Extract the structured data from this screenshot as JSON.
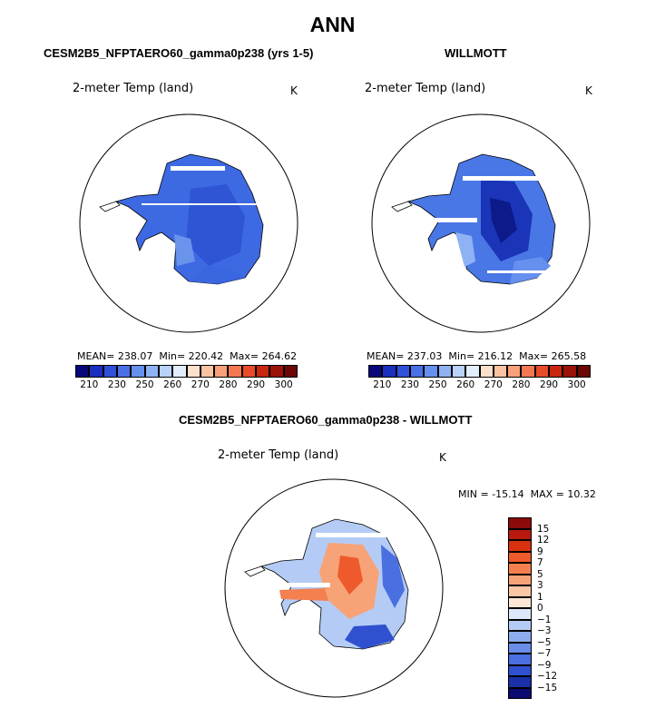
{
  "main_title": "ANN",
  "chart_data": [
    {
      "type": "heatmap",
      "map": "south-polar-stereographic",
      "title": "CESM2B5_NFPTAERO60_gamma0p238 (yrs 1-5)",
      "variable": "2-meter Temp (land)",
      "units": "K",
      "stats": {
        "mean_label": "MEAN=",
        "mean": "238.07",
        "min_label": "Min=",
        "min": "220.42",
        "max_label": "Max=",
        "max": "264.62"
      },
      "colorbar": {
        "orientation": "horizontal",
        "levels": [
          210,
          220,
          230,
          240,
          250,
          255,
          260,
          265,
          270,
          275,
          280,
          285,
          290,
          295,
          300
        ],
        "tick_labels": [
          "210",
          "230",
          "250",
          "260",
          "270",
          "280",
          "290",
          "300"
        ],
        "colors": [
          "#08087a",
          "#1a2fbf",
          "#2f50d9",
          "#4a6fe6",
          "#6690ee",
          "#8fb2f4",
          "#b8d2f8",
          "#e2eefb",
          "#fde0cc",
          "#fbc3a2",
          "#f8a07a",
          "#f27752",
          "#e84a2a",
          "#c8260f",
          "#9a1208",
          "#6b0704"
        ]
      }
    },
    {
      "type": "heatmap",
      "map": "south-polar-stereographic",
      "title": "WILLMOTT",
      "variable": "2-meter Temp (land)",
      "units": "K",
      "stats": {
        "mean_label": "MEAN=",
        "mean": "237.03",
        "min_label": "Min=",
        "min": "216.12",
        "max_label": "Max=",
        "max": "265.58"
      },
      "colorbar": {
        "orientation": "horizontal",
        "levels": [
          210,
          220,
          230,
          240,
          250,
          255,
          260,
          265,
          270,
          275,
          280,
          285,
          290,
          295,
          300
        ],
        "tick_labels": [
          "210",
          "230",
          "250",
          "260",
          "270",
          "280",
          "290",
          "300"
        ],
        "colors": [
          "#08087a",
          "#1a2fbf",
          "#2f50d9",
          "#4a6fe6",
          "#6690ee",
          "#8fb2f4",
          "#b8d2f8",
          "#e2eefb",
          "#fde0cc",
          "#fbc3a2",
          "#f8a07a",
          "#f27752",
          "#e84a2a",
          "#c8260f",
          "#9a1208",
          "#6b0704"
        ]
      }
    },
    {
      "type": "heatmap",
      "map": "south-polar-stereographic",
      "title": "CESM2B5_NFPTAERO60_gamma0p238 - WILLMOTT",
      "variable": "2-meter Temp (land)",
      "units": "K",
      "stats": {
        "min_label": "MIN =",
        "min": "-15.14",
        "max_label": "MAX =",
        "max": "10.32"
      },
      "colorbar": {
        "orientation": "vertical",
        "levels": [
          15,
          12,
          9,
          7,
          5,
          3,
          1,
          0,
          -1,
          -3,
          -5,
          -7,
          -9,
          -12,
          -15
        ],
        "tick_labels": [
          "15",
          "12",
          "9",
          "7",
          "5",
          "3",
          "1",
          "0",
          "−1",
          "−3",
          "−5",
          "−7",
          "−9",
          "−12",
          "−15"
        ],
        "colors": [
          "#8b0a0a",
          "#b81a10",
          "#d9300f",
          "#ee5a2c",
          "#f4804f",
          "#f7a377",
          "#fbc6a6",
          "#fde6d6",
          "#dde9fb",
          "#b4ccf5",
          "#8dadee",
          "#6a8ee8",
          "#4a6fe0",
          "#2f50cf",
          "#1a2fa8",
          "#0a0a70"
        ]
      }
    }
  ]
}
